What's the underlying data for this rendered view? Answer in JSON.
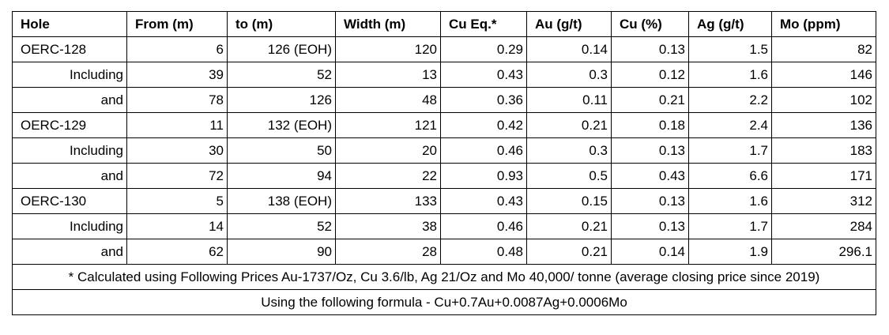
{
  "table": {
    "header": [
      "Hole",
      "From (m)",
      "to (m)",
      "Width (m)",
      "Cu Eq.*",
      "Au (g/t)",
      "Cu (%)",
      "Ag (g/t)",
      "Mo (ppm)"
    ],
    "rows": [
      [
        "OERC-128",
        6,
        "126 (EOH)",
        120,
        0.29,
        0.14,
        0.13,
        1.5,
        82
      ],
      [
        "Including",
        39,
        52,
        13,
        0.43,
        0.3,
        0.12,
        1.6,
        146
      ],
      [
        "and",
        78,
        126,
        48,
        0.36,
        0.11,
        0.21,
        2.2,
        102
      ],
      [
        "OERC-129",
        11,
        "132 (EOH)",
        121,
        0.42,
        0.21,
        0.18,
        2.4,
        136
      ],
      [
        "Including",
        30,
        50,
        20,
        0.46,
        0.3,
        0.13,
        1.7,
        183
      ],
      [
        "and",
        72,
        94,
        22,
        0.93,
        0.5,
        0.43,
        6.6,
        171
      ],
      [
        "OERC-130",
        5,
        "138 (EOH)",
        133,
        0.43,
        0.15,
        0.13,
        1.6,
        312
      ],
      [
        "Including",
        14,
        52,
        38,
        0.46,
        0.21,
        0.13,
        1.7,
        284
      ],
      [
        "and",
        62,
        90,
        28,
        0.48,
        0.21,
        0.14,
        1.9,
        296.1
      ]
    ],
    "footnotes": [
      "* Calculated using Following Prices Au-1737/Oz, Cu 3.6/lb, Ag 21/Oz and Mo 40,000/ tonne (average closing price since 2019)",
      "Using the following formula - Cu+0.7Au+0.0087Ag+0.0006Mo"
    ]
  }
}
